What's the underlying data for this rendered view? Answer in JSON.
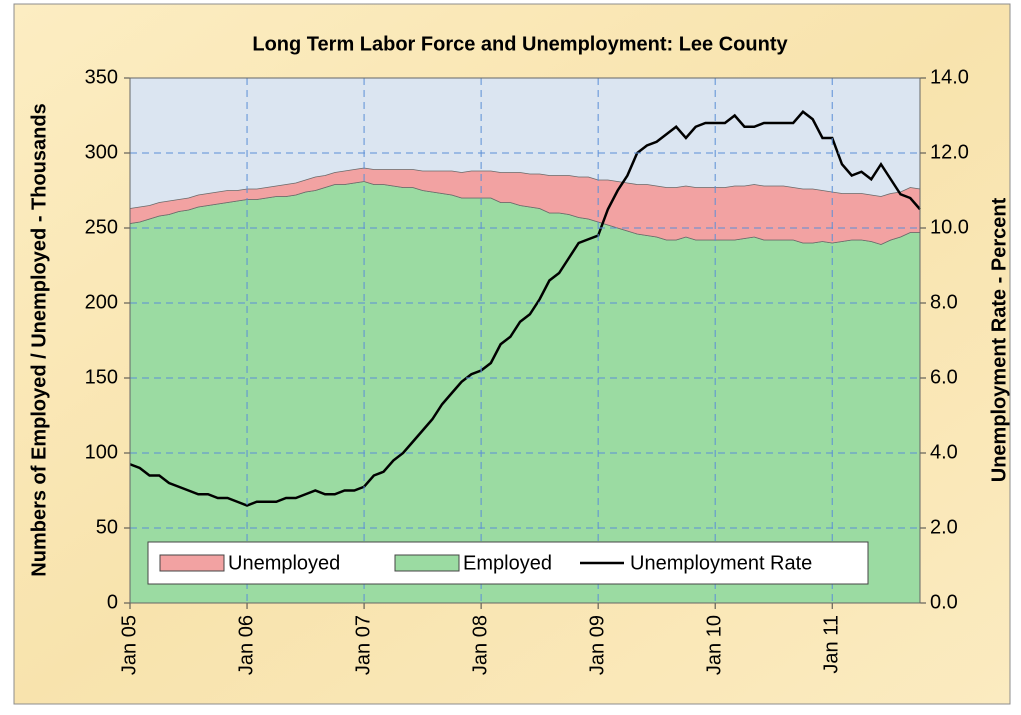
{
  "chart_data": {
    "type": "stacked-area-line",
    "title": "Long Term Labor Force and Unemployment: Lee County",
    "y_label": "Numbers of Employed / Unemployed - Thousands",
    "y2_label": "Unemployment Rate - Percent",
    "categories": [
      "Jan 05",
      null,
      null,
      null,
      null,
      null,
      null,
      null,
      null,
      null,
      null,
      null,
      "Jan 06",
      null,
      null,
      null,
      null,
      null,
      null,
      null,
      null,
      null,
      null,
      null,
      "Jan 07",
      null,
      null,
      null,
      null,
      null,
      null,
      null,
      null,
      null,
      null,
      null,
      "Jan 08",
      null,
      null,
      null,
      null,
      null,
      null,
      null,
      null,
      null,
      null,
      null,
      "Jan 09",
      null,
      null,
      null,
      null,
      null,
      null,
      null,
      null,
      null,
      null,
      null,
      "Jan 10",
      null,
      null,
      null,
      null,
      null,
      null,
      null,
      null,
      null,
      null,
      null,
      "Jan 11",
      null,
      null,
      null,
      null,
      null,
      null,
      null,
      null,
      null
    ],
    "series": [
      {
        "name": "Unemployed",
        "color": "#f2a2a2",
        "values": [
          10,
          10,
          9,
          9,
          9,
          8,
          8,
          8,
          8,
          8,
          8,
          7,
          7,
          7,
          7,
          7,
          8,
          8,
          8,
          9,
          8,
          8,
          9,
          9,
          9,
          10,
          10,
          11,
          12,
          12,
          13,
          14,
          15,
          16,
          17,
          18,
          18,
          18,
          20,
          20,
          22,
          22,
          23,
          25,
          25,
          26,
          27,
          28,
          28,
          30,
          31,
          32,
          33,
          34,
          34,
          35,
          35,
          34,
          35,
          35,
          35,
          35,
          36,
          35,
          35,
          36,
          36,
          36,
          35,
          36,
          36,
          34,
          34,
          32,
          31,
          31,
          31,
          32,
          31,
          30,
          30,
          29
        ]
      },
      {
        "name": "Employed",
        "color": "#9bdba2",
        "values": [
          253,
          254,
          256,
          258,
          259,
          261,
          262,
          264,
          265,
          266,
          267,
          268,
          269,
          269,
          270,
          271,
          271,
          272,
          274,
          275,
          277,
          279,
          279,
          280,
          281,
          279,
          279,
          278,
          277,
          277,
          275,
          274,
          273,
          272,
          270,
          270,
          270,
          270,
          267,
          267,
          265,
          264,
          263,
          260,
          260,
          259,
          257,
          256,
          254,
          252,
          250,
          248,
          246,
          245,
          244,
          242,
          242,
          244,
          242,
          242,
          242,
          242,
          242,
          243,
          244,
          242,
          242,
          242,
          242,
          240,
          240,
          241,
          240,
          241,
          242,
          242,
          241,
          239,
          242,
          244,
          247,
          247
        ]
      },
      {
        "name": "Unemployment Rate",
        "color": "#000000",
        "axis": "y2",
        "values": [
          3.7,
          3.6,
          3.4,
          3.4,
          3.2,
          3.1,
          3.0,
          2.9,
          2.9,
          2.8,
          2.8,
          2.7,
          2.6,
          2.7,
          2.7,
          2.7,
          2.8,
          2.8,
          2.9,
          3.0,
          2.9,
          2.9,
          3.0,
          3.0,
          3.1,
          3.4,
          3.5,
          3.8,
          4.0,
          4.3,
          4.6,
          4.9,
          5.3,
          5.6,
          5.9,
          6.1,
          6.2,
          6.4,
          6.9,
          7.1,
          7.5,
          7.7,
          8.1,
          8.6,
          8.8,
          9.2,
          9.6,
          9.7,
          9.8,
          10.5,
          11.0,
          11.4,
          12.0,
          12.2,
          12.3,
          12.5,
          12.7,
          12.4,
          12.7,
          12.8,
          12.8,
          12.8,
          13.0,
          12.7,
          12.7,
          12.8,
          12.8,
          12.8,
          12.8,
          13.1,
          12.9,
          12.4,
          12.4,
          11.7,
          11.4,
          11.5,
          11.3,
          11.7,
          11.3,
          10.9,
          10.8,
          10.5
        ]
      }
    ],
    "ylim": [
      0,
      350
    ],
    "yticks": [
      0,
      50,
      100,
      150,
      200,
      250,
      300,
      350
    ],
    "y2lim": [
      0,
      14
    ],
    "y2ticks": [
      {
        "value": 0,
        "label": "0.0"
      },
      {
        "value": 2,
        "label": "2.0"
      },
      {
        "value": 4,
        "label": "4.0"
      },
      {
        "value": 6,
        "label": "6.0"
      },
      {
        "value": 8,
        "label": "8.0"
      },
      {
        "value": 10,
        "label": "10.0"
      },
      {
        "value": 12,
        "label": "12.0"
      },
      {
        "value": 14,
        "label": "14.0"
      }
    ],
    "grid": true,
    "legend": "bottom"
  }
}
